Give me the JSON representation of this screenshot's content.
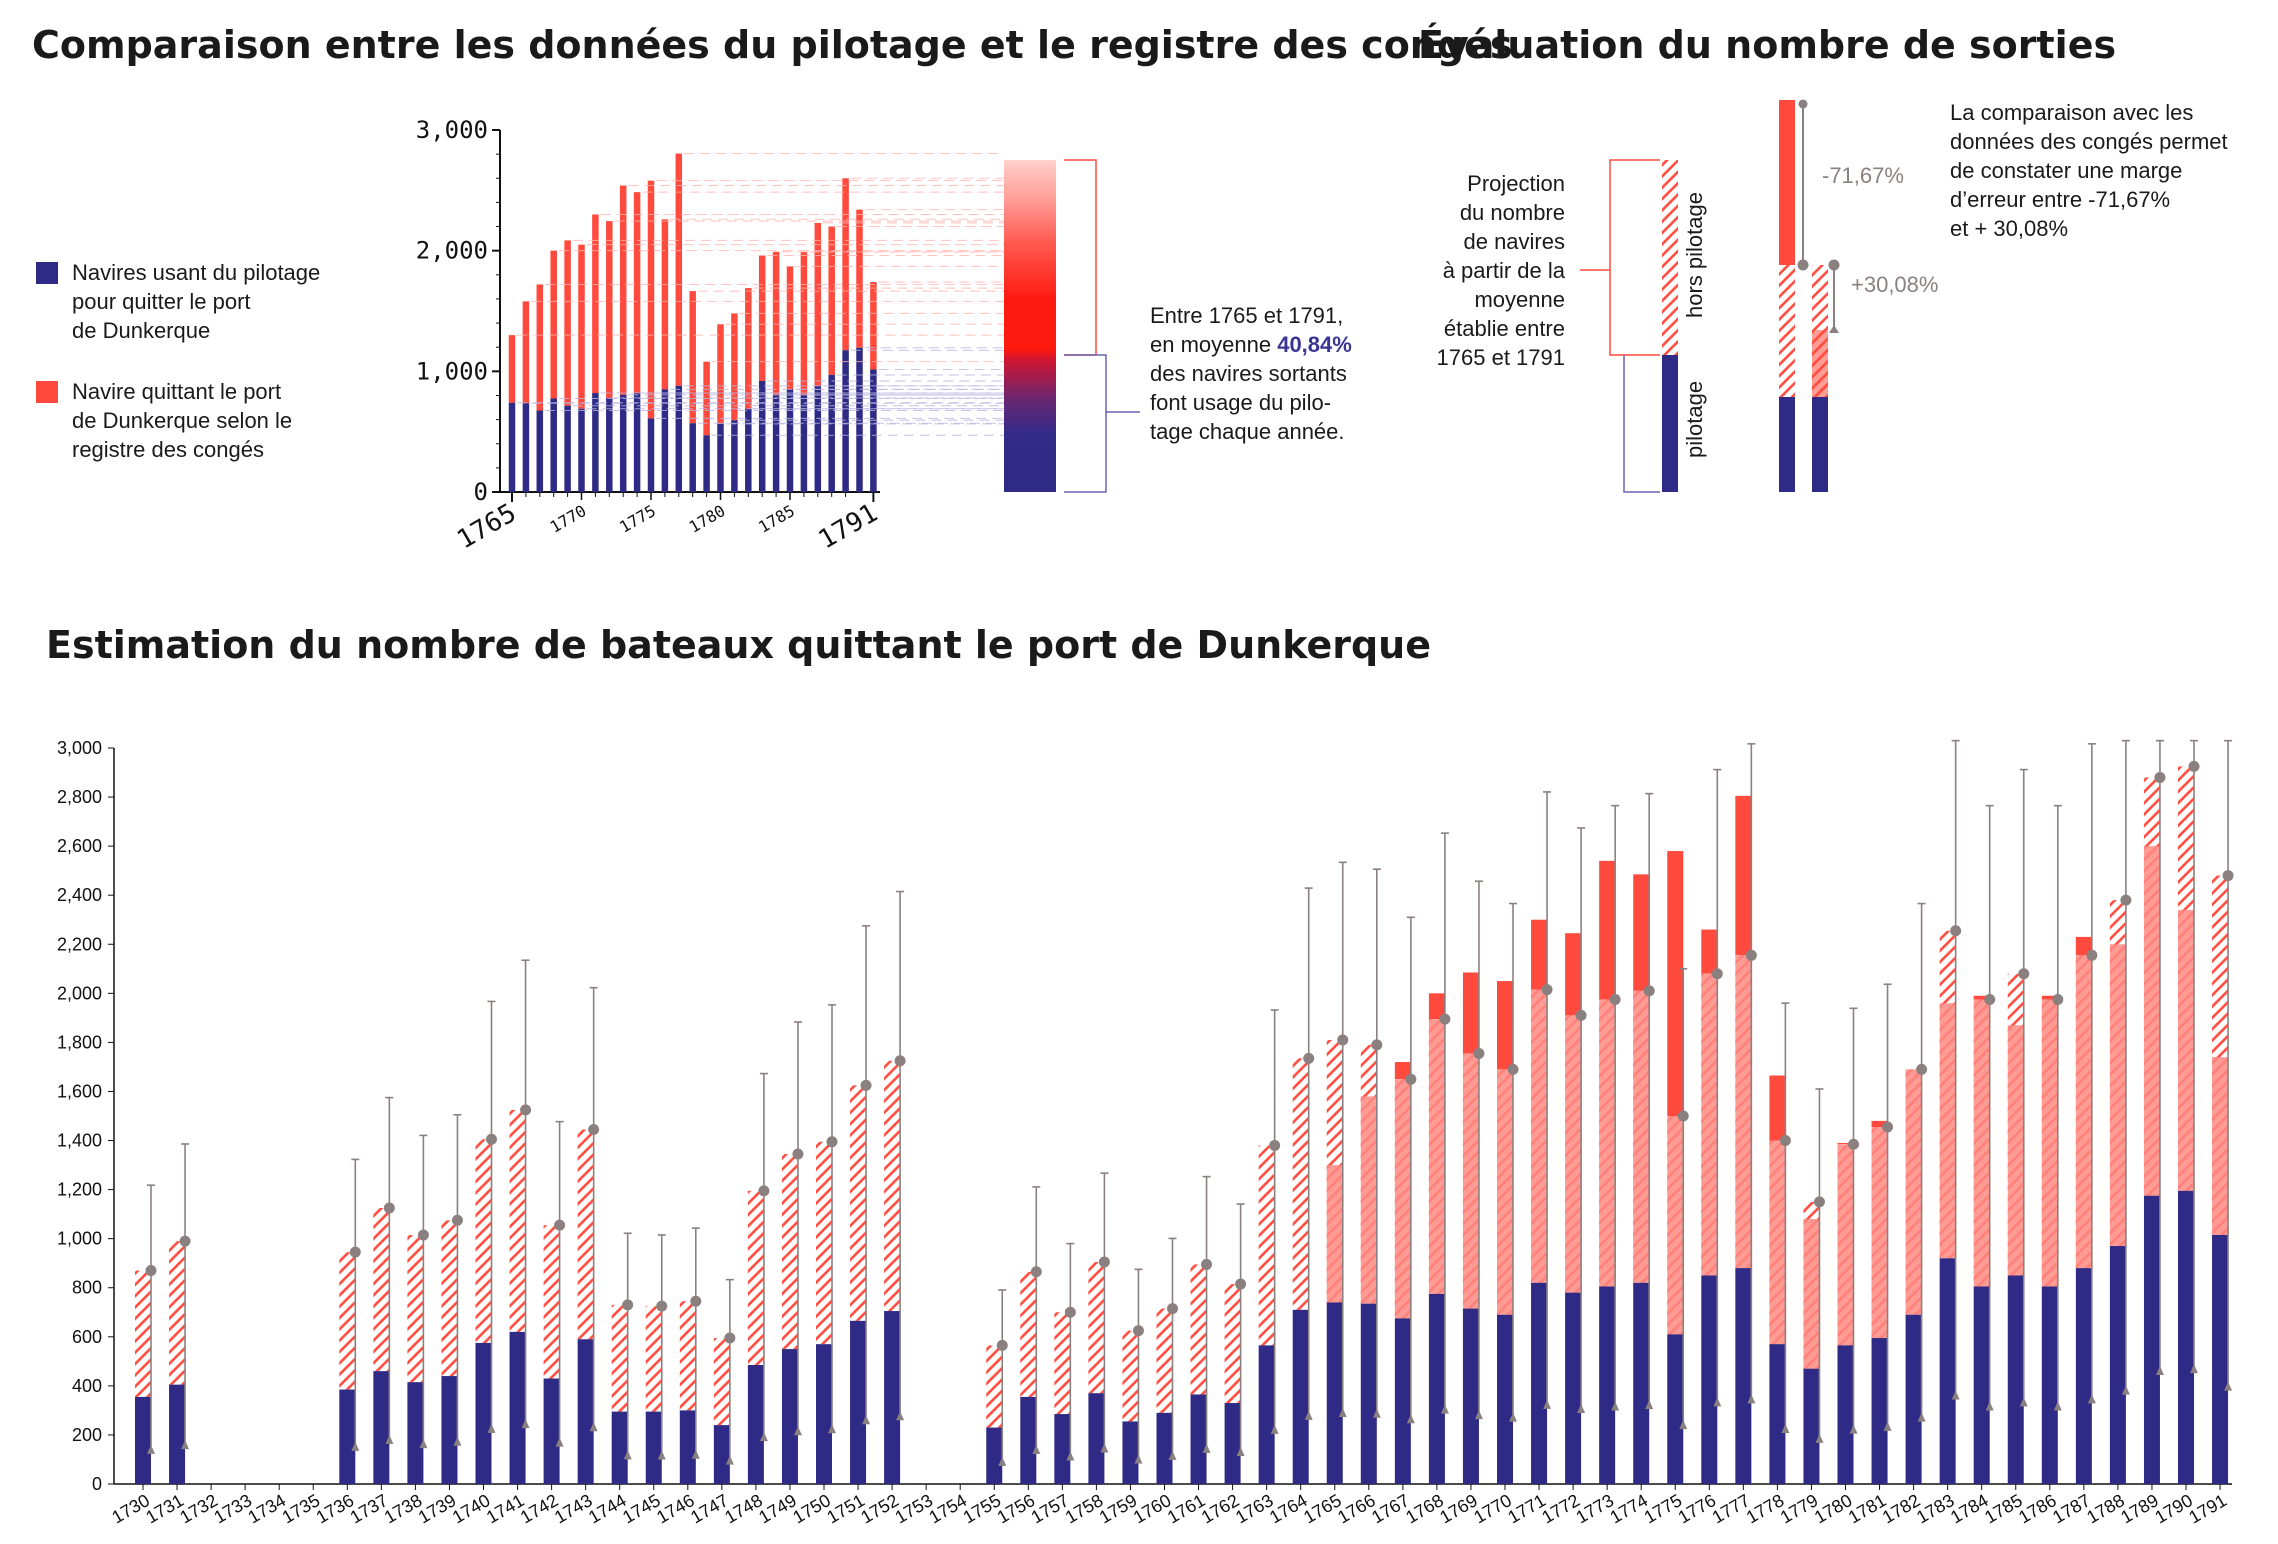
{
  "titles": {
    "comparison": "Comparaison entre les données du pilotage et le registre des congés",
    "evaluation": "Évaluation du nombre de sorties",
    "estimation": "Estimation du nombre de bateaux quittant le port de Dunkerque"
  },
  "legend": {
    "pilot": [
      "Navires usant du pilotage",
      "pour quitter le port",
      "de Dunkerque"
    ],
    "conges": [
      "Navire quittant le port",
      "de Dunkerque selon le",
      "registre des congés"
    ]
  },
  "annotation_mean": {
    "line1": "Entre 1765 et 1791,",
    "line2_pre": "en moyenne ",
    "line2_value": "40,84%",
    "line3": "des navires sortants",
    "line4": "font usage du pilo-",
    "line5": "tage chaque année."
  },
  "projection_text": [
    "Projection",
    "du nombre",
    "de navires",
    "à partir de la",
    "moyenne",
    "établie entre",
    "1765 et 1791"
  ],
  "bar_labels": {
    "hors_pilotage": "hors pilotage",
    "pilotage": "pilotage"
  },
  "margin_text": [
    "La comparaison avec les",
    "données des congés permet",
    "de constater une marge",
    "d’erreur entre -71,67%",
    "et + 30,08%"
  ],
  "margins": {
    "low": "-71,67%",
    "high": "+30,08%"
  },
  "colors": {
    "pilot": "#2e2a85",
    "conges": "#ff4a3d",
    "hatch": "#ff4a3d",
    "whisker": "#8a8080",
    "projection": "#ff2a1a"
  },
  "chart_data": [
    {
      "type": "bar",
      "id": "comparison",
      "x": [
        1765,
        1766,
        1767,
        1768,
        1769,
        1770,
        1771,
        1772,
        1773,
        1774,
        1775,
        1776,
        1777,
        1778,
        1779,
        1780,
        1781,
        1782,
        1783,
        1784,
        1785,
        1786,
        1787,
        1788,
        1789,
        1790,
        1791
      ],
      "xticks_major": [
        "1765",
        "1791"
      ],
      "xticks_minor": [
        "1770",
        "1775",
        "1780",
        "1785"
      ],
      "yticks": [
        "3,000",
        "2,000",
        "1,000",
        "0"
      ],
      "ylim": [
        0,
        3000
      ],
      "series": [
        {
          "name": "Navires usant du pilotage pour quitter le port de Dunkerque",
          "values": [
            740,
            735,
            675,
            775,
            715,
            690,
            820,
            780,
            805,
            820,
            610,
            850,
            880,
            570,
            470,
            565,
            595,
            690,
            920,
            805,
            850,
            805,
            880,
            970,
            1175,
            1195,
            1015
          ]
        },
        {
          "name": "Navire quittant le port de Dunkerque selon le registre des congés",
          "values": [
            1300,
            1580,
            1720,
            2000,
            2085,
            2050,
            2300,
            2245,
            2540,
            2485,
            2580,
            2260,
            2805,
            1665,
            1080,
            1390,
            1480,
            1690,
            1960,
            1990,
            1870,
            1990,
            2230,
            2200,
            2600,
            2340,
            1740
          ]
        }
      ]
    },
    {
      "type": "bar",
      "id": "estimation",
      "x": [
        1730,
        1731,
        1732,
        1733,
        1734,
        1735,
        1736,
        1737,
        1738,
        1739,
        1740,
        1741,
        1742,
        1743,
        1744,
        1745,
        1746,
        1747,
        1748,
        1749,
        1750,
        1751,
        1752,
        1753,
        1754,
        1755,
        1756,
        1757,
        1758,
        1759,
        1760,
        1761,
        1762,
        1763,
        1764,
        1765,
        1766,
        1767,
        1768,
        1769,
        1770,
        1771,
        1772,
        1773,
        1774,
        1775,
        1776,
        1777,
        1778,
        1779,
        1780,
        1781,
        1782,
        1783,
        1784,
        1785,
        1786,
        1787,
        1788,
        1789,
        1790,
        1791
      ],
      "yticks": [
        "0",
        "200",
        "400",
        "600",
        "800",
        "1,000",
        "1,200",
        "1,400",
        "1,600",
        "1,800",
        "2,000",
        "2,200",
        "2,400",
        "2,600",
        "2,800",
        "3,000"
      ],
      "ylim": [
        0,
        3000
      ],
      "series": [
        {
          "name": "pilotage",
          "values": [
            355,
            405,
            null,
            null,
            null,
            null,
            385,
            460,
            415,
            440,
            575,
            620,
            430,
            590,
            295,
            295,
            300,
            240,
            485,
            550,
            570,
            665,
            705,
            null,
            null,
            230,
            355,
            285,
            370,
            255,
            290,
            365,
            330,
            565,
            710,
            740,
            735,
            675,
            775,
            715,
            690,
            820,
            780,
            805,
            820,
            610,
            850,
            880,
            570,
            470,
            565,
            595,
            690,
            920,
            805,
            850,
            805,
            880,
            970,
            1175,
            1195,
            1015
          ]
        },
        {
          "name": "projection",
          "values": [
            870,
            990,
            null,
            null,
            null,
            null,
            945,
            1125,
            1015,
            1075,
            1405,
            1525,
            1055,
            1445,
            730,
            725,
            745,
            595,
            1195,
            1345,
            1395,
            1625,
            1725,
            null,
            null,
            565,
            865,
            700,
            905,
            625,
            715,
            895,
            815,
            1380,
            1735,
            1810,
            1790,
            1650,
            1895,
            1755,
            1690,
            2015,
            1910,
            1975,
            2010,
            1500,
            2080,
            2155,
            1400,
            1150,
            1385,
            1455,
            1690,
            2255,
            1975,
            2080,
            1975,
            2155,
            2380,
            2880,
            2925,
            2480
          ]
        },
        {
          "name": "congés",
          "values": [
            null,
            null,
            null,
            null,
            null,
            null,
            null,
            null,
            null,
            null,
            null,
            null,
            null,
            null,
            null,
            null,
            null,
            null,
            null,
            null,
            null,
            null,
            null,
            null,
            null,
            null,
            null,
            null,
            null,
            null,
            null,
            null,
            null,
            null,
            null,
            1300,
            1580,
            1720,
            2000,
            2085,
            2050,
            2300,
            2245,
            2540,
            2485,
            2580,
            2260,
            2805,
            1665,
            1080,
            1390,
            1480,
            1690,
            1960,
            1990,
            1870,
            1990,
            2230,
            2200,
            2600,
            2340,
            1740
          ]
        }
      ]
    }
  ]
}
